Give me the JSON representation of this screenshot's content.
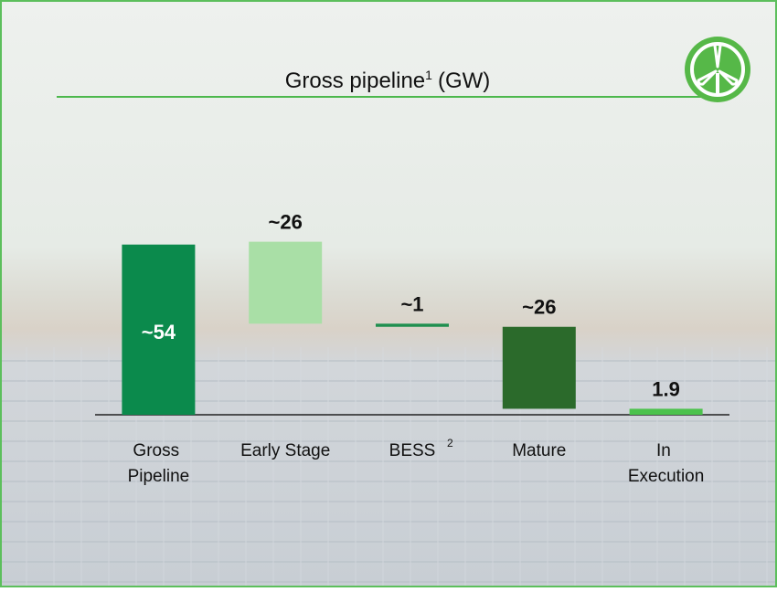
{
  "chart_data": {
    "type": "waterfall",
    "title": "Gross pipeline",
    "title_superscript": "1",
    "title_unit": "(GW)",
    "categories": [
      "Gross Pipeline",
      "Early Stage",
      "BESS",
      "Mature",
      "In Execution"
    ],
    "category_superscripts": [
      null,
      null,
      "2",
      null,
      null
    ],
    "values": [
      54,
      26,
      1,
      26,
      1.9
    ],
    "value_labels": [
      "~54",
      "~26",
      "~1",
      "~26",
      "1.9"
    ],
    "colors": [
      "#0b8a4c",
      "#a9dfa6",
      "#1f8f4f",
      "#2b6a2b",
      "#4cc24c"
    ],
    "ylim": [
      0,
      60
    ]
  }
}
